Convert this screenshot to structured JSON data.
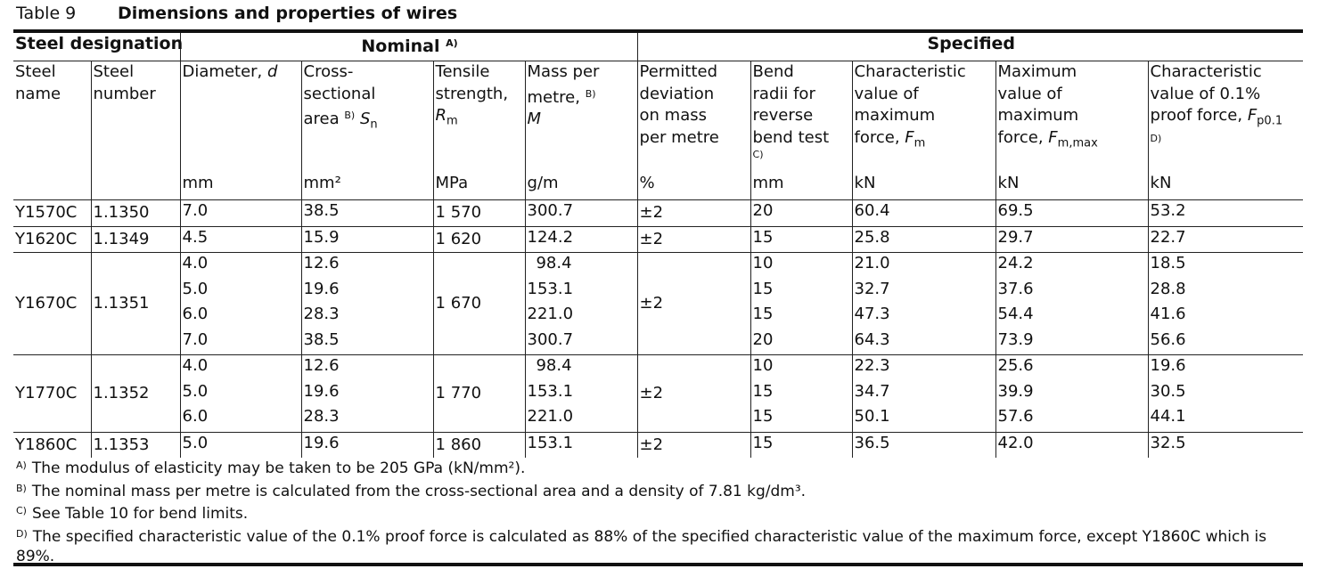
{
  "table_label": "Table 9",
  "table_title": "Dimensions and properties of wires",
  "group_headers": {
    "steel_designation": "Steel designation",
    "nominal": "Nominal",
    "nominal_note": "A)",
    "specified": "Specified"
  },
  "column_headers": {
    "steel_name": [
      "Steel",
      "name"
    ],
    "steel_number": [
      "Steel",
      "number"
    ],
    "diameter": {
      "text": "Diameter,",
      "symbol": "d"
    },
    "area": {
      "line1": "Cross-",
      "line2": "sectional",
      "line3": "area",
      "note": "B)",
      "symbol": "S",
      "sub": "n"
    },
    "tensile": {
      "line1": "Tensile",
      "line2": "strength,",
      "symbol": "R",
      "sub": "m"
    },
    "mass": {
      "line1": "Mass per",
      "line2": "metre,",
      "note": "B)",
      "symbol": "M"
    },
    "deviation": [
      "Permitted",
      "deviation",
      "on mass",
      "per metre"
    ],
    "bend": {
      "lines": [
        "Bend",
        "radii for",
        "reverse",
        "bend test"
      ],
      "note": "C)"
    },
    "char_max": {
      "lines": [
        "Characteristic",
        "value of",
        "maximum"
      ],
      "last": "force,",
      "symbol": "F",
      "sub": "m"
    },
    "max_max": {
      "lines": [
        "Maximum",
        "value of",
        "maximum"
      ],
      "last": "force,",
      "symbol": "F",
      "sub": "m,max"
    },
    "proof": {
      "lines": [
        "Characteristic",
        "value of 0.1%"
      ],
      "last": "proof force,",
      "symbol": "F",
      "sub": "p0.1",
      "note": "D)"
    }
  },
  "units": [
    "",
    "",
    "mm",
    "mm²",
    "MPa",
    "g/m",
    "%",
    "mm",
    "kN",
    "kN",
    "kN"
  ],
  "groups": [
    {
      "name": "Y1570C",
      "number": "1.1350",
      "tensile": "1 570",
      "deviation": "±2",
      "rows": [
        {
          "d": "7.0",
          "area": "38.5",
          "mass": "300.7",
          "bend": "20",
          "fm": "60.4",
          "fmax": "69.5",
          "fp": "53.2"
        }
      ]
    },
    {
      "name": "Y1620C",
      "number": "1.1349",
      "tensile": "1 620",
      "deviation": "±2",
      "rows": [
        {
          "d": "4.5",
          "area": "15.9",
          "mass": "124.2",
          "bend": "15",
          "fm": "25.8",
          "fmax": "29.7",
          "fp": "22.7"
        }
      ]
    },
    {
      "name": "Y1670C",
      "number": "1.1351",
      "tensile": "1 670",
      "deviation": "±2",
      "rows": [
        {
          "d": "4.0",
          "area": "12.6",
          "mass": "98.4",
          "bend": "10",
          "fm": "21.0",
          "fmax": "24.2",
          "fp": "18.5"
        },
        {
          "d": "5.0",
          "area": "19.6",
          "mass": "153.1",
          "bend": "15",
          "fm": "32.7",
          "fmax": "37.6",
          "fp": "28.8"
        },
        {
          "d": "6.0",
          "area": "28.3",
          "mass": "221.0",
          "bend": "15",
          "fm": "47.3",
          "fmax": "54.4",
          "fp": "41.6"
        },
        {
          "d": "7.0",
          "area": "38.5",
          "mass": "300.7",
          "bend": "20",
          "fm": "64.3",
          "fmax": "73.9",
          "fp": "56.6"
        }
      ]
    },
    {
      "name": "Y1770C",
      "number": "1.1352",
      "tensile": "1 770",
      "deviation": "±2",
      "rows": [
        {
          "d": "4.0",
          "area": "12.6",
          "mass": "98.4",
          "bend": "10",
          "fm": "22.3",
          "fmax": "25.6",
          "fp": "19.6"
        },
        {
          "d": "5.0",
          "area": "19.6",
          "mass": "153.1",
          "bend": "15",
          "fm": "34.7",
          "fmax": "39.9",
          "fp": "30.5"
        },
        {
          "d": "6.0",
          "area": "28.3",
          "mass": "221.0",
          "bend": "15",
          "fm": "50.1",
          "fmax": "57.6",
          "fp": "44.1"
        }
      ]
    },
    {
      "name": "Y1860C",
      "number": "1.1353",
      "tensile": "1 860",
      "deviation": "±2",
      "rows": [
        {
          "d": "5.0",
          "area": "19.6",
          "mass": "153.1",
          "bend": "15",
          "fm": "36.5",
          "fmax": "42.0",
          "fp": "32.5"
        }
      ]
    }
  ],
  "footnotes": [
    {
      "mark": "A)",
      "text": "The modulus of elasticity may be taken to be 205 GPa (kN/mm²)."
    },
    {
      "mark": "B)",
      "text": "The nominal mass per metre is calculated from the cross-sectional area and a density of 7.81 kg/dm³."
    },
    {
      "mark": "C)",
      "text": "See Table 10 for bend limits."
    },
    {
      "mark": "D)",
      "text": "The specified characteristic value of the 0.1% proof force is calculated as 88% of the specified characteristic value of the maximum force, except Y1860C which is 89%."
    }
  ]
}
